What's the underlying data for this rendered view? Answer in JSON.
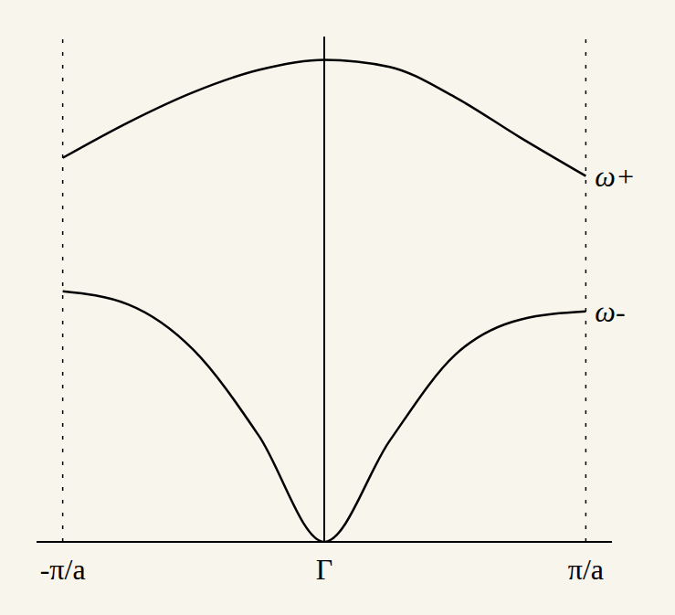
{
  "chart_data": {
    "type": "line",
    "x": [
      -1,
      -0.75,
      -0.5,
      -0.25,
      0,
      0.25,
      0.5,
      0.75,
      1
    ],
    "series": [
      {
        "name": "ω+",
        "color": "#000000",
        "values": [
          3.8,
          4.15,
          4.45,
          4.67,
          4.77,
          4.7,
          4.4,
          4.0,
          3.62
        ]
      },
      {
        "name": "ω-",
        "color": "#000000",
        "values": [
          2.48,
          2.35,
          1.9,
          1.05,
          0,
          1.0,
          1.85,
          2.2,
          2.28
        ]
      }
    ],
    "xlim": [
      -1.1,
      1.1
    ],
    "xticks": [
      {
        "value": -1,
        "label": "-π/a"
      },
      {
        "value": 0,
        "label": "Γ"
      },
      {
        "value": 1,
        "label": "π/a"
      }
    ],
    "ylim": [
      0,
      5
    ],
    "tick_labels": "x",
    "grid": false
  }
}
